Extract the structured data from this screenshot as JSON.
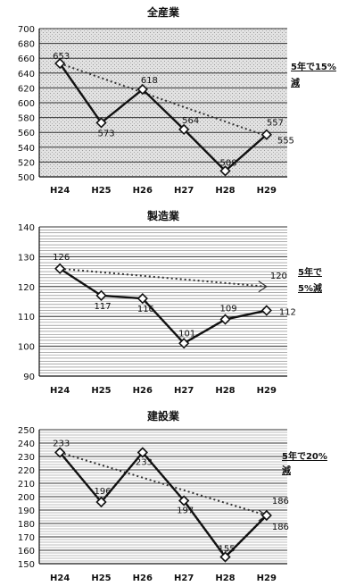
{
  "chart_data": [
    {
      "type": "line",
      "title": "全産業",
      "categories": [
        "H24",
        "H25",
        "H26",
        "H27",
        "H28",
        "H29"
      ],
      "ylim": [
        500,
        700
      ],
      "yticks": [
        500,
        520,
        540,
        560,
        580,
        600,
        620,
        640,
        660,
        680,
        700
      ],
      "background": "stippled",
      "series": [
        {
          "values": [
            653,
            573,
            618,
            564,
            508,
            557
          ],
          "labels": [
            "653",
            "573",
            "618",
            "564",
            "508",
            "557"
          ]
        }
      ],
      "target": {
        "from": 653,
        "to": 555,
        "label": "555"
      },
      "note": [
        "5年で15%",
        "減"
      ]
    },
    {
      "type": "line",
      "title": "製造業",
      "categories": [
        "H24",
        "H25",
        "H26",
        "H27",
        "H28",
        "H29"
      ],
      "ylim": [
        90,
        140
      ],
      "yticks": [
        90,
        100,
        110,
        120,
        130,
        140
      ],
      "background": "plain",
      "series": [
        {
          "values": [
            126,
            117,
            116,
            101,
            109,
            112
          ],
          "labels": [
            "126",
            "117",
            "116",
            "101",
            "109",
            "112"
          ]
        }
      ],
      "target": {
        "from": 126,
        "to": 120,
        "label": "120"
      },
      "note": [
        "5年で",
        "5%減"
      ]
    },
    {
      "type": "line",
      "title": "建設業",
      "categories": [
        "H24",
        "H25",
        "H26",
        "H27",
        "H28",
        "H29"
      ],
      "ylim": [
        150,
        250
      ],
      "yticks": [
        150,
        160,
        170,
        180,
        190,
        200,
        210,
        220,
        230,
        240,
        250
      ],
      "background": "plain",
      "series": [
        {
          "values": [
            233,
            196,
            233,
            197,
            155,
            186
          ],
          "labels": [
            "233",
            "196",
            "233",
            "197",
            "155",
            "186"
          ]
        }
      ],
      "target": {
        "from": 233,
        "to": 186,
        "label": "186"
      },
      "note": [
        "5年で20%",
        "減"
      ]
    }
  ]
}
